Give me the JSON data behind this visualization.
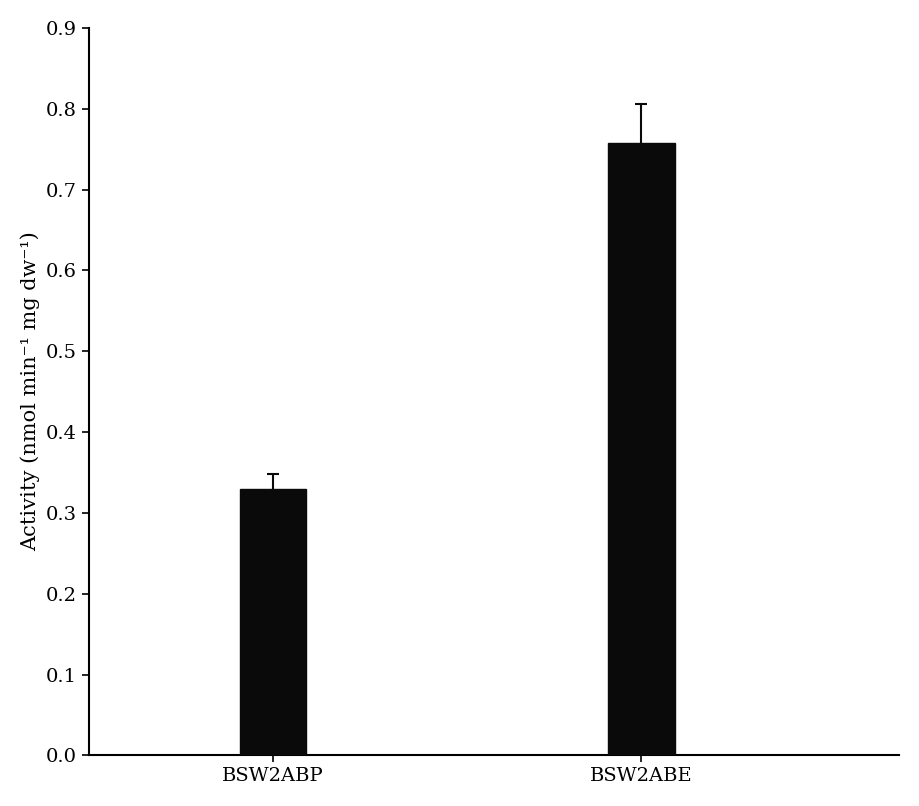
{
  "categories": [
    "BSW2ABP",
    "BSW2ABE"
  ],
  "values": [
    0.33,
    0.758
  ],
  "errors": [
    0.018,
    0.048
  ],
  "bar_color": "#0a0a0a",
  "bar_width": 0.18,
  "x_positions": [
    1,
    2
  ],
  "xlim": [
    0.5,
    2.7
  ],
  "ylim": [
    0,
    0.9
  ],
  "yticks": [
    0,
    0.1,
    0.2,
    0.3,
    0.4,
    0.5,
    0.6,
    0.7,
    0.8,
    0.9
  ],
  "ylabel": "Activity (nmol min⁻¹ mg dw⁻¹)",
  "ylabel_fontsize": 15,
  "tick_fontsize": 14,
  "xlabel_fontsize": 14,
  "background_color": "#ffffff",
  "error_capsize": 4,
  "error_linewidth": 1.5,
  "error_color": "#0a0a0a"
}
